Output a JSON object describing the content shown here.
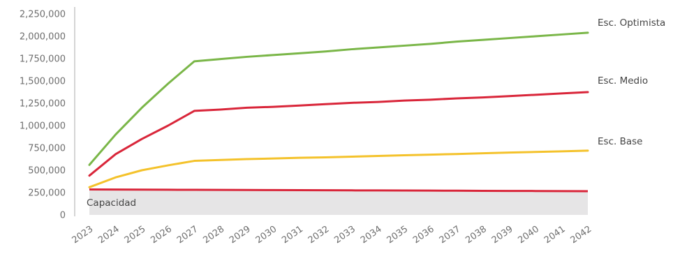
{
  "chart_data": {
    "type": "line",
    "x": [
      "2023",
      "2024",
      "2025",
      "2026",
      "2027",
      "2028",
      "2029",
      "2030",
      "2031",
      "2032",
      "2033",
      "2034",
      "2035",
      "2036",
      "2037",
      "2038",
      "2039",
      "2040",
      "2041",
      "2042"
    ],
    "ylim": [
      0,
      2250000
    ],
    "yticks": [
      "0",
      "250,000",
      "500,000",
      "750,000",
      "1,000,000",
      "1,250,000",
      "1,500,000",
      "1,750,000",
      "2,000,000",
      "2,250,000"
    ],
    "series": [
      {
        "name": "Esc. Optimista",
        "color": "#7ab648",
        "values": [
          560000,
          900000,
          1200000,
          1470000,
          1720000,
          1745000,
          1770000,
          1790000,
          1810000,
          1830000,
          1855000,
          1875000,
          1895000,
          1915000,
          1940000,
          1960000,
          1980000,
          2000000,
          2020000,
          2040000
        ]
      },
      {
        "name": "Esc. Medio",
        "color": "#d9263a",
        "values": [
          440000,
          680000,
          850000,
          1000000,
          1165000,
          1180000,
          1200000,
          1210000,
          1225000,
          1240000,
          1255000,
          1265000,
          1280000,
          1290000,
          1305000,
          1315000,
          1330000,
          1345000,
          1360000,
          1375000
        ]
      },
      {
        "name": "Esc. Base",
        "color": "#f4c22b",
        "values": [
          310000,
          420000,
          500000,
          555000,
          605000,
          615000,
          625000,
          632000,
          640000,
          645000,
          652000,
          660000,
          668000,
          675000,
          682000,
          690000,
          698000,
          705000,
          712000,
          720000
        ]
      }
    ],
    "capacity": {
      "label": "Capacidad",
      "color": "#d9263a",
      "fill": "#e6e5e6",
      "values": [
        285000,
        284000,
        283000,
        282000,
        281000,
        280000,
        279000,
        278000,
        277000,
        276000,
        275000,
        274000,
        273000,
        272000,
        271000,
        270000,
        269000,
        268000,
        267000,
        266000
      ]
    },
    "title": "",
    "xlabel": "",
    "ylabel": "",
    "grid": false
  }
}
